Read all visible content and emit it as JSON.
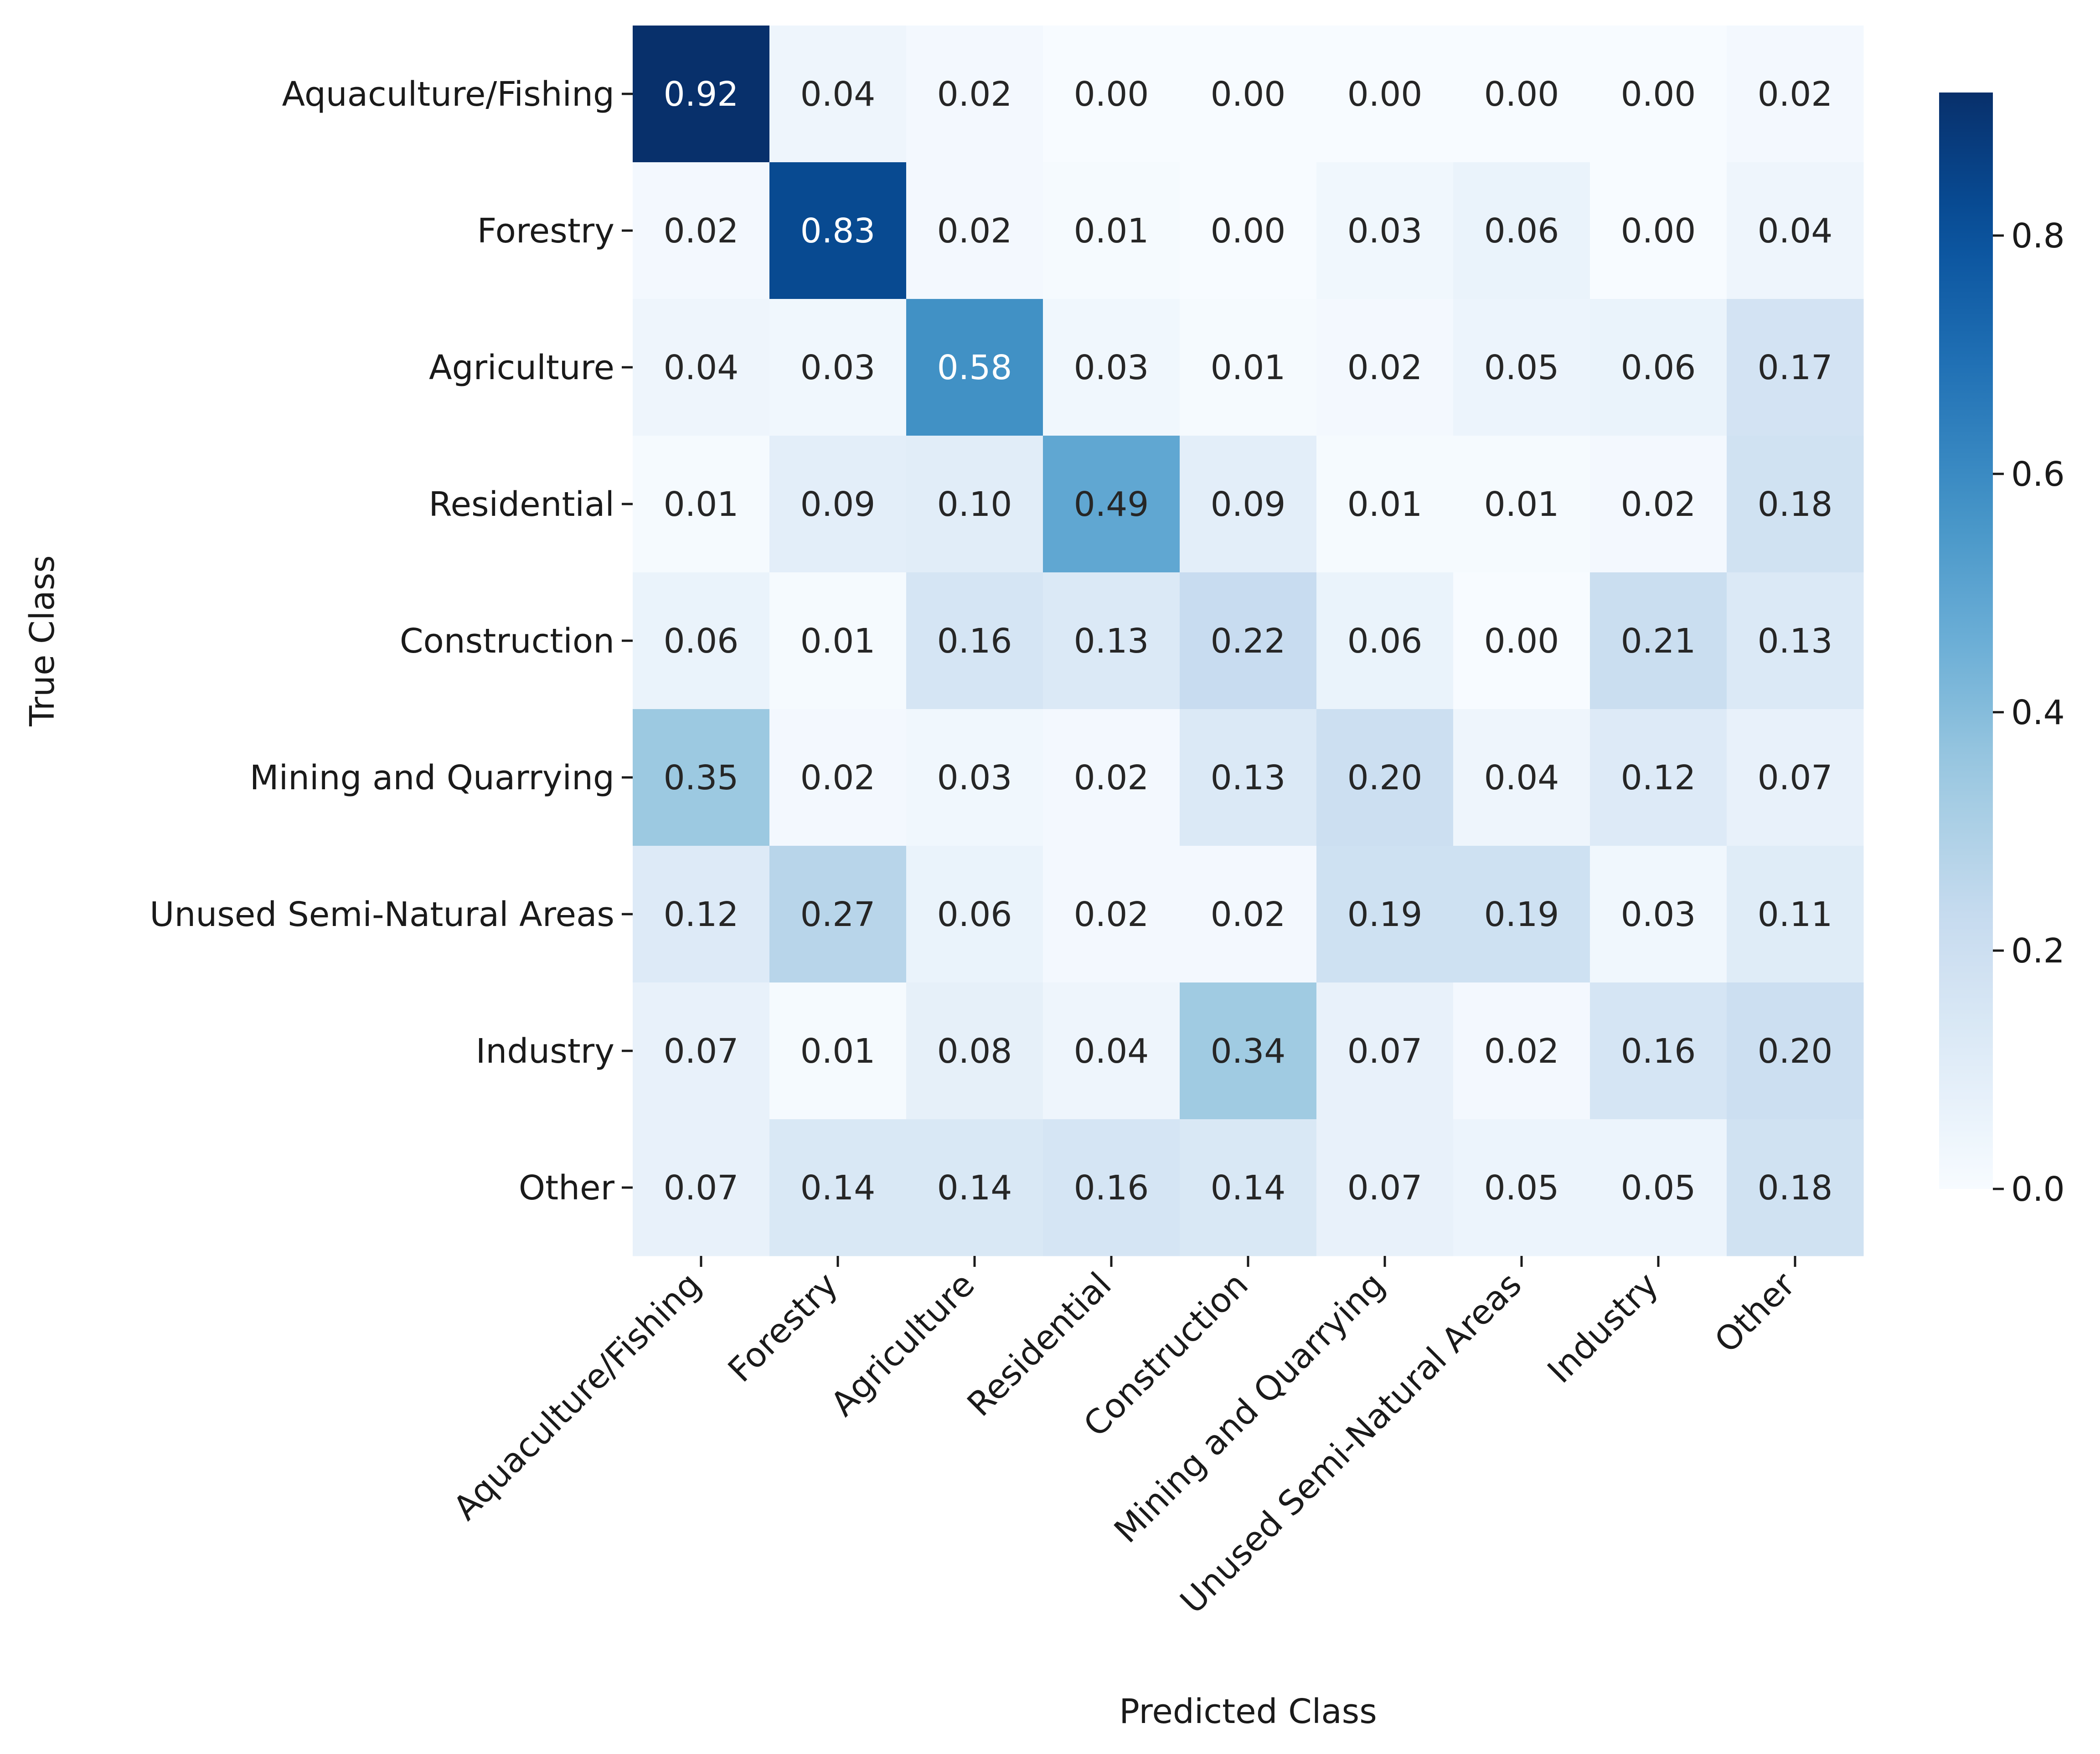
{
  "chart_data": {
    "type": "heatmap",
    "title": "",
    "xlabel": "Predicted Class",
    "ylabel": "True Class",
    "x_categories": [
      "Aquaculture/Fishing",
      "Forestry",
      "Agriculture",
      "Residential",
      "Construction",
      "Mining and Quarrying",
      "Unused Semi-Natural Areas",
      "Industry",
      "Other"
    ],
    "y_categories": [
      "Aquaculture/Fishing",
      "Forestry",
      "Agriculture",
      "Residential",
      "Construction",
      "Mining and Quarrying",
      "Unused Semi-Natural Areas",
      "Industry",
      "Other"
    ],
    "values": [
      [
        0.92,
        0.04,
        0.02,
        0.0,
        0.0,
        0.0,
        0.0,
        0.0,
        0.02
      ],
      [
        0.02,
        0.83,
        0.02,
        0.01,
        0.0,
        0.03,
        0.06,
        0.0,
        0.04
      ],
      [
        0.04,
        0.03,
        0.58,
        0.03,
        0.01,
        0.02,
        0.05,
        0.06,
        0.17
      ],
      [
        0.01,
        0.09,
        0.1,
        0.49,
        0.09,
        0.01,
        0.01,
        0.02,
        0.18
      ],
      [
        0.06,
        0.01,
        0.16,
        0.13,
        0.22,
        0.06,
        0.0,
        0.21,
        0.13
      ],
      [
        0.35,
        0.02,
        0.03,
        0.02,
        0.13,
        0.2,
        0.04,
        0.12,
        0.07
      ],
      [
        0.12,
        0.27,
        0.06,
        0.02,
        0.02,
        0.19,
        0.19,
        0.03,
        0.11
      ],
      [
        0.07,
        0.01,
        0.08,
        0.04,
        0.34,
        0.07,
        0.02,
        0.16,
        0.2
      ],
      [
        0.07,
        0.14,
        0.14,
        0.16,
        0.14,
        0.07,
        0.05,
        0.05,
        0.18
      ]
    ],
    "value_format": "0.00",
    "colormap": "Blues",
    "color_range": [
      0.0,
      0.92
    ],
    "colorbar": {
      "ticks": [
        0.0,
        0.2,
        0.4,
        0.6,
        0.8
      ],
      "tick_labels": [
        "0.0",
        "0.2",
        "0.4",
        "0.6",
        "0.8"
      ],
      "placement": "right"
    },
    "grid": false,
    "legend": "none"
  }
}
